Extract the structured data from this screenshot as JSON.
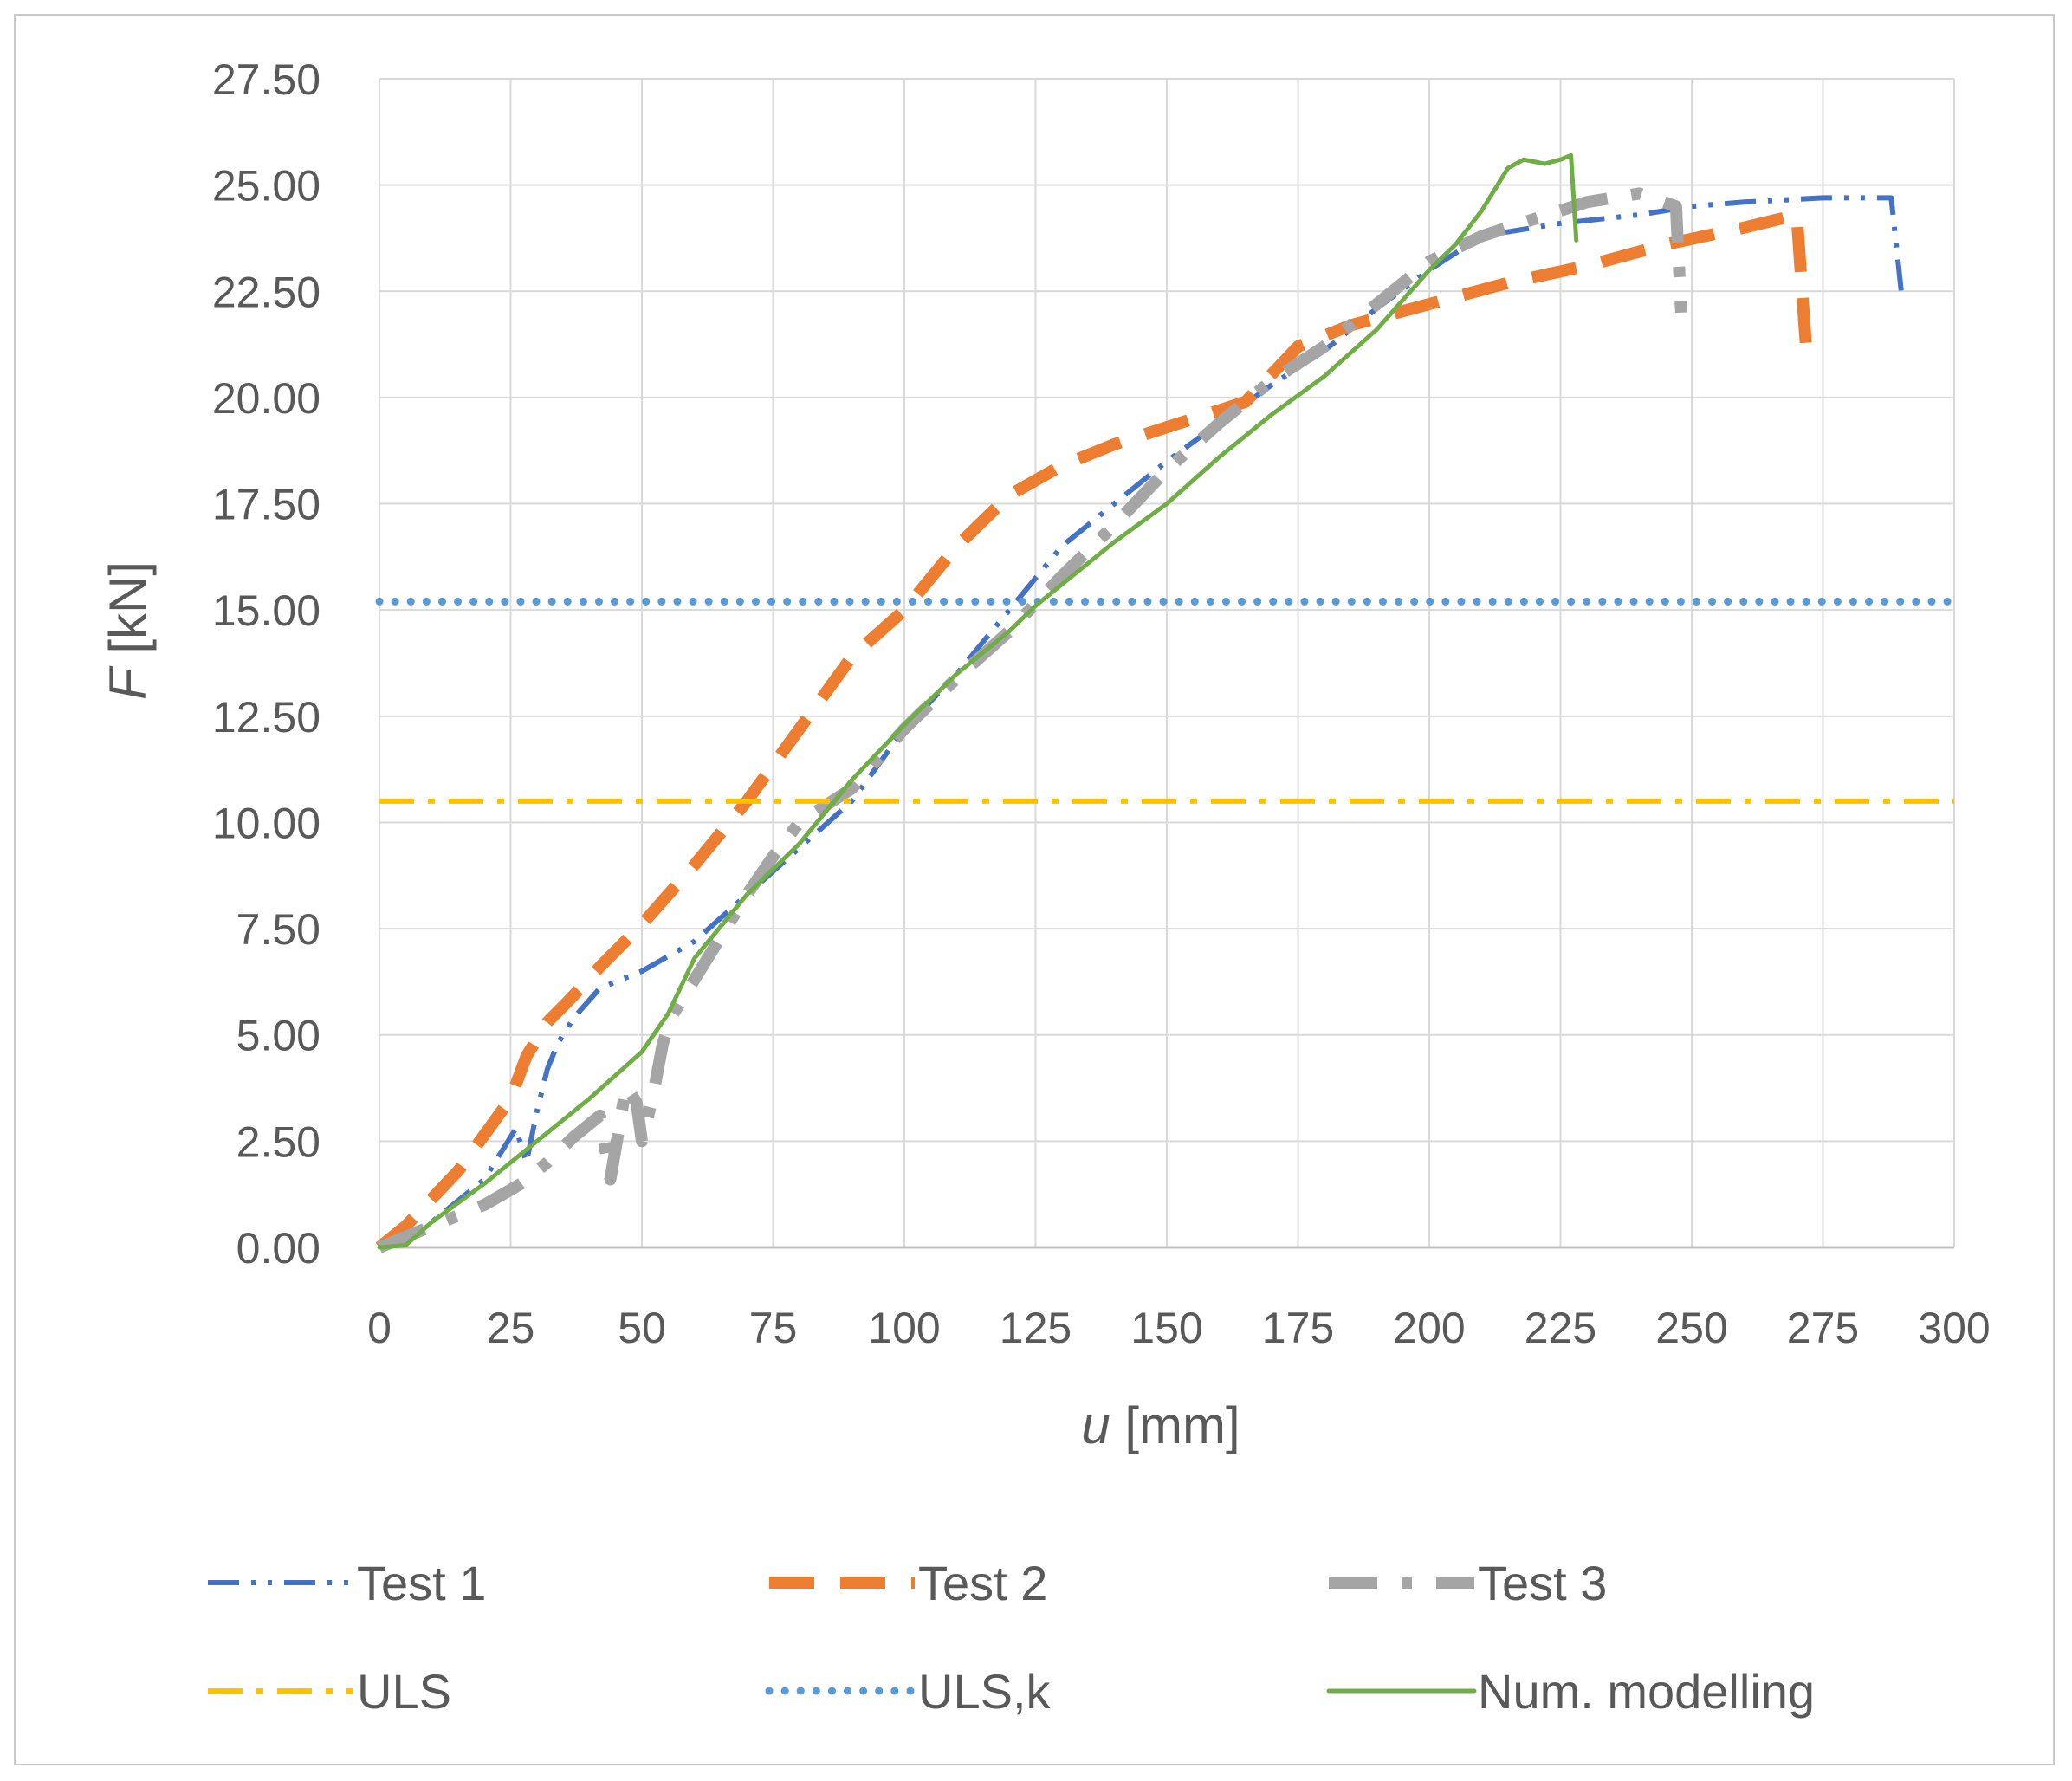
{
  "chart_data": {
    "type": "line",
    "xlabel": {
      "var": "u",
      "unit": " [mm]"
    },
    "ylabel": {
      "var": "F",
      "unit": " [kN]"
    },
    "xlim": [
      0,
      300
    ],
    "ylim": [
      0,
      27.5
    ],
    "x_ticks": [
      0,
      25,
      50,
      75,
      100,
      125,
      150,
      175,
      200,
      225,
      250,
      275,
      300
    ],
    "y_ticks": [
      0,
      2.5,
      5,
      7.5,
      10,
      12.5,
      15,
      17.5,
      20,
      22.5,
      25,
      27.5
    ],
    "x_tick_labels": [
      "0",
      "25",
      "50",
      "75",
      "100",
      "125",
      "150",
      "175",
      "200",
      "225",
      "250",
      "275",
      "300"
    ],
    "y_tick_labels": [
      "0.00",
      "2.50",
      "5.00",
      "7.50",
      "10.00",
      "12.50",
      "15.00",
      "17.50",
      "20.00",
      "22.50",
      "25.00",
      "27.50"
    ],
    "grid": true,
    "legend_position": "bottom",
    "series": [
      {
        "name": "Test 1",
        "color": "#4472c4",
        "style": "dash-dot-dot",
        "points": [
          [
            0,
            0
          ],
          [
            10,
            0.6
          ],
          [
            20,
            1.6
          ],
          [
            26,
            2.8
          ],
          [
            28,
            2.0
          ],
          [
            30,
            3.2
          ],
          [
            32,
            4.2
          ],
          [
            34,
            4.8
          ],
          [
            37,
            5.4
          ],
          [
            42,
            6.1
          ],
          [
            50,
            6.5
          ],
          [
            60,
            7.2
          ],
          [
            70,
            8.3
          ],
          [
            80,
            9.4
          ],
          [
            90,
            10.5
          ],
          [
            100,
            12.2
          ],
          [
            110,
            13.5
          ],
          [
            120,
            15.0
          ],
          [
            130,
            16.5
          ],
          [
            140,
            17.5
          ],
          [
            150,
            18.5
          ],
          [
            160,
            19.4
          ],
          [
            170,
            20.3
          ],
          [
            180,
            21.1
          ],
          [
            190,
            22.1
          ],
          [
            200,
            23.0
          ],
          [
            210,
            23.8
          ],
          [
            225,
            24.1
          ],
          [
            240,
            24.3
          ],
          [
            250,
            24.5
          ],
          [
            260,
            24.6
          ],
          [
            275,
            24.7
          ],
          [
            288,
            24.7
          ],
          [
            290,
            22.4
          ]
        ]
      },
      {
        "name": "Test 2",
        "color": "#ed7d31",
        "style": "long-dash",
        "points": [
          [
            0,
            0
          ],
          [
            5,
            0.5
          ],
          [
            15,
            1.8
          ],
          [
            25,
            3.5
          ],
          [
            28,
            4.5
          ],
          [
            32,
            5.3
          ],
          [
            36,
            5.8
          ],
          [
            42,
            6.6
          ],
          [
            50,
            7.6
          ],
          [
            60,
            9.0
          ],
          [
            70,
            10.5
          ],
          [
            80,
            12.2
          ],
          [
            90,
            13.9
          ],
          [
            100,
            15.0
          ],
          [
            110,
            16.5
          ],
          [
            120,
            17.7
          ],
          [
            130,
            18.4
          ],
          [
            140,
            18.9
          ],
          [
            150,
            19.3
          ],
          [
            160,
            19.7
          ],
          [
            165,
            19.9
          ],
          [
            175,
            21.2
          ],
          [
            185,
            21.7
          ],
          [
            200,
            22.2
          ],
          [
            215,
            22.7
          ],
          [
            230,
            23.1
          ],
          [
            245,
            23.6
          ],
          [
            260,
            24.0
          ],
          [
            270,
            24.3
          ],
          [
            272,
            20.8
          ]
        ]
      },
      {
        "name": "Test 3",
        "color": "#a5a5a5",
        "style": "long-dash-dot",
        "points": [
          [
            0,
            0
          ],
          [
            10,
            0.5
          ],
          [
            20,
            1.0
          ],
          [
            27,
            1.5
          ],
          [
            32,
            2.0
          ],
          [
            37,
            2.6
          ],
          [
            42,
            3.1
          ],
          [
            44,
            1.6
          ],
          [
            47,
            3.8
          ],
          [
            49,
            3.4
          ],
          [
            50,
            2.5
          ],
          [
            52,
            3.5
          ],
          [
            54,
            4.8
          ],
          [
            56,
            5.5
          ],
          [
            60,
            6.3
          ],
          [
            65,
            7.3
          ],
          [
            70,
            8.3
          ],
          [
            75,
            9.2
          ],
          [
            80,
            10.0
          ],
          [
            90,
            10.8
          ],
          [
            100,
            12.2
          ],
          [
            110,
            13.4
          ],
          [
            120,
            14.5
          ],
          [
            130,
            15.8
          ],
          [
            140,
            17.0
          ],
          [
            150,
            18.3
          ],
          [
            160,
            19.4
          ],
          [
            170,
            20.4
          ],
          [
            180,
            21.2
          ],
          [
            190,
            22.2
          ],
          [
            200,
            23.2
          ],
          [
            210,
            23.8
          ],
          [
            220,
            24.2
          ],
          [
            230,
            24.6
          ],
          [
            240,
            24.8
          ],
          [
            247,
            24.5
          ],
          [
            248,
            22.0
          ]
        ]
      },
      {
        "name": "ULS",
        "color": "#ffc000",
        "style": "dash-dot",
        "points": [
          [
            0,
            10.5
          ],
          [
            300,
            10.5
          ]
        ]
      },
      {
        "name": "ULS,k",
        "color": "#5b9bd5",
        "style": "dotted",
        "points": [
          [
            0,
            15.2
          ],
          [
            300,
            15.2
          ]
        ]
      },
      {
        "name": "Num. modelling",
        "color": "#70ad47",
        "style": "solid",
        "points": [
          [
            0,
            0
          ],
          [
            5,
            0.05
          ],
          [
            10,
            0.6
          ],
          [
            20,
            1.5
          ],
          [
            30,
            2.5
          ],
          [
            40,
            3.5
          ],
          [
            50,
            4.6
          ],
          [
            55,
            5.5
          ],
          [
            60,
            6.8
          ],
          [
            70,
            8.3
          ],
          [
            80,
            9.5
          ],
          [
            90,
            11.0
          ],
          [
            100,
            12.3
          ],
          [
            110,
            13.5
          ],
          [
            120,
            14.5
          ],
          [
            125,
            15.1
          ],
          [
            130,
            15.6
          ],
          [
            140,
            16.6
          ],
          [
            150,
            17.5
          ],
          [
            160,
            18.6
          ],
          [
            170,
            19.6
          ],
          [
            180,
            20.5
          ],
          [
            190,
            21.6
          ],
          [
            200,
            23.0
          ],
          [
            205,
            23.6
          ],
          [
            210,
            24.4
          ],
          [
            215,
            25.4
          ],
          [
            218,
            25.6
          ],
          [
            222,
            25.5
          ],
          [
            225,
            25.6
          ],
          [
            227,
            25.7
          ],
          [
            228,
            23.7
          ]
        ]
      }
    ]
  }
}
